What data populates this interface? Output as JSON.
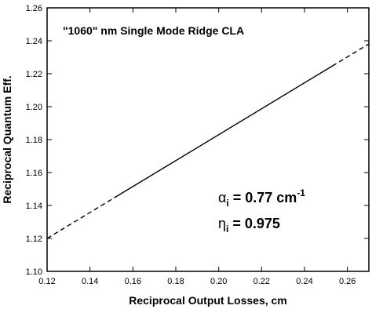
{
  "chart_data": {
    "type": "line",
    "title": "\"1060\" nm Single Mode Ridge CLA",
    "x_label": "Reciprocal Output Losses, cm",
    "y_label": "Reciprocal Quantum Eff.",
    "xlim": [
      0.12,
      0.27
    ],
    "ylim": [
      1.1,
      1.26
    ],
    "xticks": [
      0.12,
      0.14,
      0.16,
      0.18,
      {
        "value": 0.2,
        "label": "0.20"
      },
      0.22,
      0.24,
      0.26
    ],
    "yticks": [
      {
        "value": 1.1,
        "label": "1.10"
      },
      1.12,
      1.14,
      1.16,
      1.18,
      {
        "value": 1.2,
        "label": "1.20"
      },
      1.22,
      1.24,
      1.26
    ],
    "color": "#000000",
    "series": [
      {
        "x": [
          0.12,
          0.153
        ],
        "values": [
          1.12,
          1.146
        ],
        "dashed": true
      },
      {
        "x": [
          0.153,
          0.253
        ],
        "values": [
          1.146,
          1.2247
        ],
        "dashed": false
      },
      {
        "x": [
          0.253,
          0.27
        ],
        "values": [
          1.2247,
          1.2381
        ],
        "dashed": true
      }
    ],
    "annotations": [
      {
        "symbol": "α",
        "subscript": "i",
        "text": "= 0.77 cm",
        "superscript": "-1"
      },
      {
        "symbol": "η",
        "subscript": "i",
        "text": "= 0.975"
      }
    ]
  }
}
